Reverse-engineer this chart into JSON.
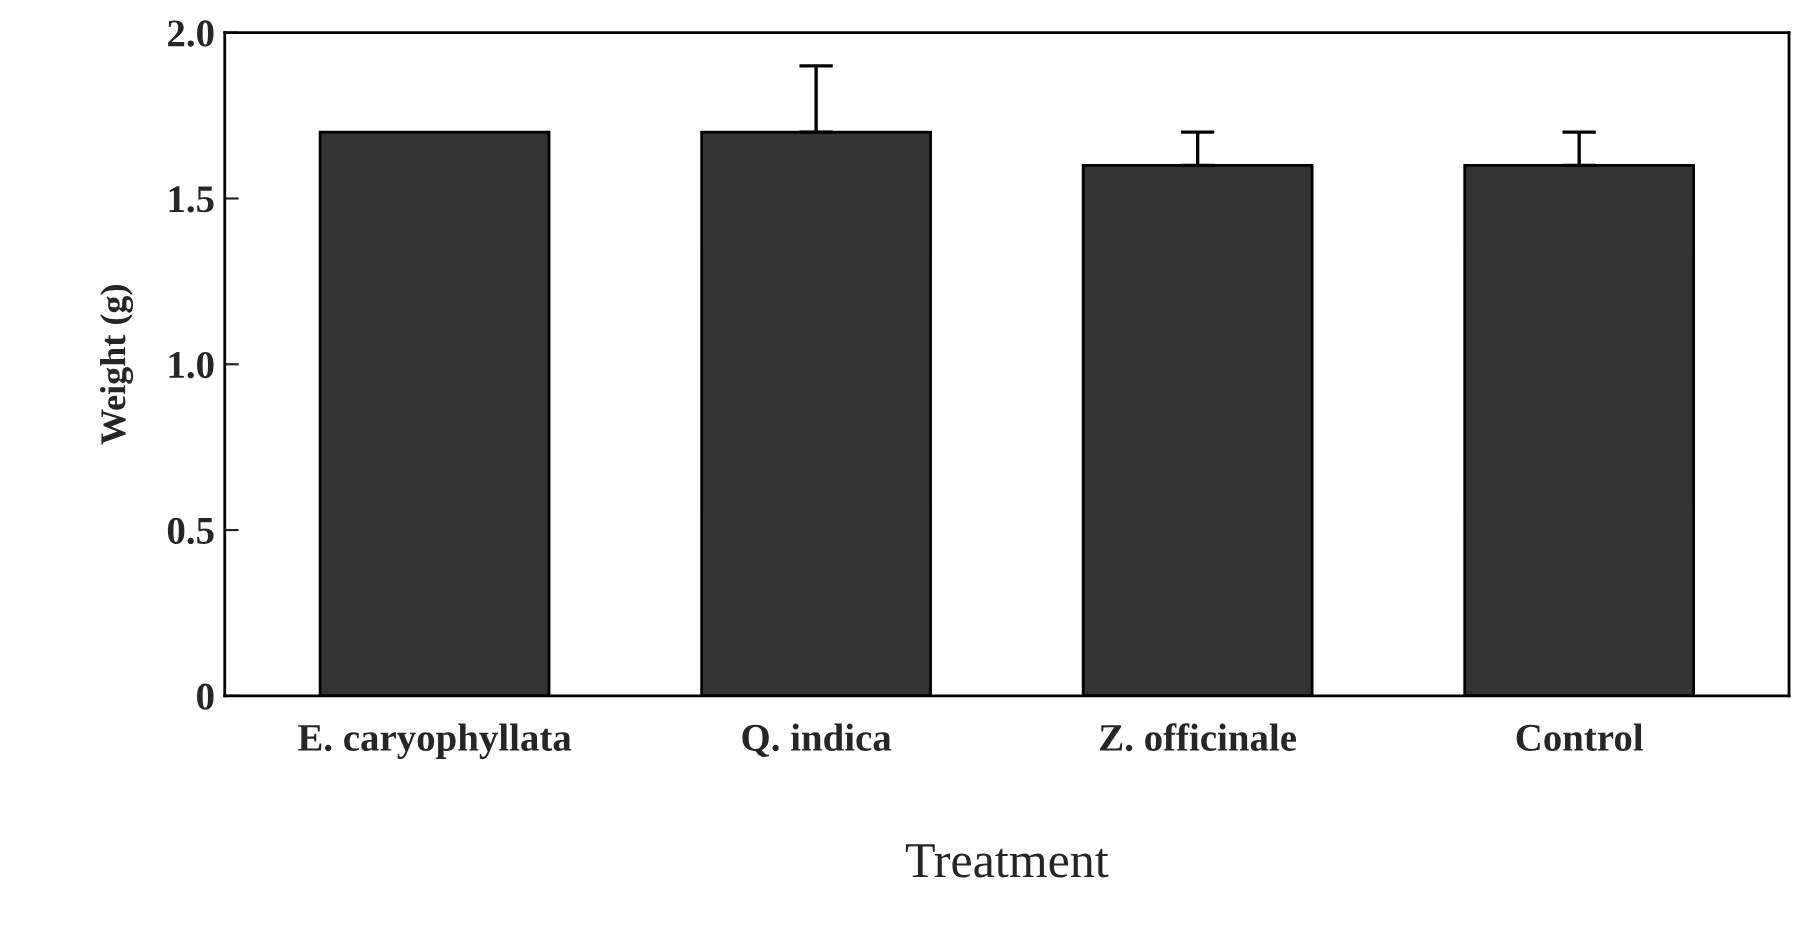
{
  "chart_data": {
    "type": "bar",
    "xlabel": "Treatment",
    "ylabel": "Weight (g)",
    "categories": [
      "E. caryophyllata",
      "Q. indica",
      "Z. officinale",
      "Control"
    ],
    "values": [
      1.7,
      1.7,
      1.6,
      1.6
    ],
    "errors": [
      null,
      [
        1.7,
        1.9
      ],
      [
        1.6,
        1.7
      ],
      [
        1.6,
        1.7
      ]
    ],
    "color": "#333333",
    "ylim": [
      0,
      2.0
    ],
    "yticks": [
      0,
      {
        "value": 0.5,
        "label": "0.5"
      },
      {
        "value": 1.0,
        "label": "1.0"
      },
      {
        "value": 1.5,
        "label": "1.5"
      },
      {
        "value": 2.0,
        "label": "2.0"
      }
    ],
    "grid": false,
    "legend": false
  }
}
